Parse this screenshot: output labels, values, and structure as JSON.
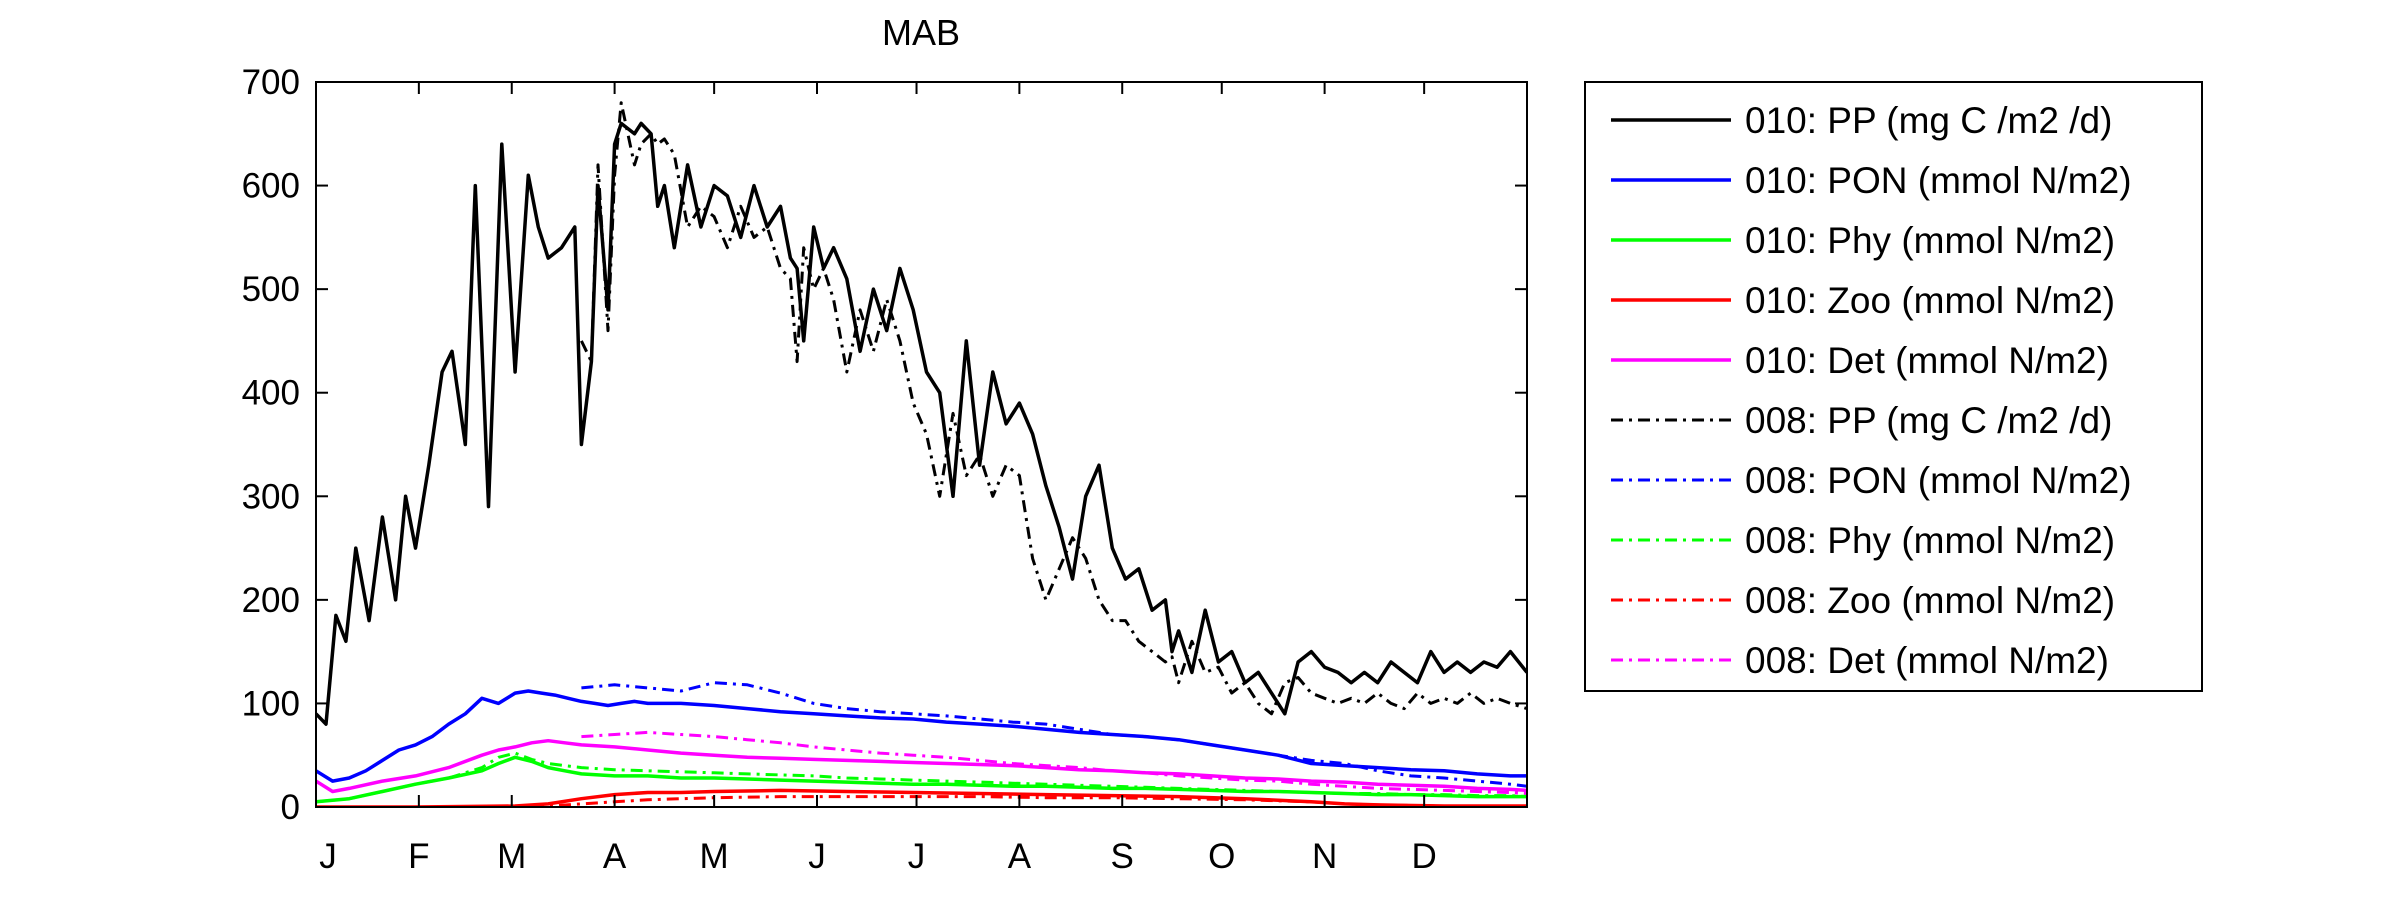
{
  "chart_data": {
    "type": "line",
    "title": "MAB",
    "xlabel": "",
    "ylabel": "",
    "x_range_days": [
      0,
      365
    ],
    "ylim": [
      0,
      700
    ],
    "y_ticks": [
      0,
      100,
      200,
      300,
      400,
      500,
      600,
      700
    ],
    "x_ticks": [
      "J",
      "F",
      "M",
      "A",
      "M",
      "J",
      "J",
      "A",
      "S",
      "O",
      "N",
      "D"
    ],
    "x_tick_days": [
      0,
      31,
      59,
      90,
      120,
      151,
      181,
      212,
      243,
      273,
      304,
      334
    ],
    "grid": false,
    "legend_position": "outside-right",
    "series": [
      {
        "name": "010: PP (mg C /m2 /d)",
        "color": "#000000",
        "style": "solid",
        "x": [
          0,
          3,
          6,
          9,
          12,
          16,
          20,
          24,
          27,
          30,
          34,
          38,
          41,
          45,
          48,
          52,
          56,
          60,
          64,
          67,
          70,
          74,
          78,
          80,
          83,
          85,
          88,
          90,
          92,
          96,
          98,
          101,
          103,
          105,
          108,
          112,
          116,
          120,
          124,
          128,
          132,
          136,
          140,
          143,
          145,
          147,
          150,
          153,
          156,
          160,
          164,
          168,
          172,
          176,
          180,
          184,
          188,
          192,
          196,
          200,
          204,
          208,
          212,
          216,
          220,
          224,
          228,
          232,
          236,
          240,
          244,
          248,
          252,
          256,
          258,
          260,
          264,
          268,
          272,
          276,
          280,
          284,
          288,
          292,
          296,
          300,
          304,
          308,
          312,
          316,
          320,
          324,
          328,
          332,
          336,
          340,
          344,
          348,
          352,
          356,
          360,
          365
        ],
        "y": [
          90,
          80,
          185,
          160,
          250,
          180,
          280,
          200,
          300,
          250,
          330,
          420,
          440,
          350,
          600,
          290,
          640,
          420,
          610,
          560,
          530,
          540,
          560,
          350,
          430,
          600,
          480,
          640,
          660,
          650,
          660,
          650,
          580,
          600,
          540,
          620,
          560,
          600,
          590,
          550,
          600,
          560,
          580,
          530,
          520,
          450,
          560,
          520,
          540,
          510,
          440,
          500,
          460,
          520,
          480,
          420,
          400,
          300,
          450,
          330,
          420,
          370,
          390,
          360,
          310,
          270,
          220,
          300,
          330,
          250,
          220,
          230,
          190,
          200,
          150,
          170,
          130,
          190,
          140,
          150,
          120,
          130,
          110,
          90,
          140,
          150,
          135,
          130,
          120,
          130,
          120,
          140,
          130,
          120,
          150,
          130,
          140,
          130,
          140,
          135,
          150,
          130
        ]
      },
      {
        "name": "010: PON (mmol N/m2)",
        "color": "#0000ff",
        "style": "solid",
        "x": [
          0,
          5,
          10,
          15,
          20,
          25,
          30,
          35,
          40,
          45,
          50,
          55,
          60,
          64,
          68,
          72,
          76,
          80,
          84,
          88,
          92,
          96,
          100,
          110,
          120,
          130,
          140,
          150,
          160,
          170,
          180,
          190,
          200,
          210,
          220,
          230,
          240,
          250,
          260,
          270,
          280,
          290,
          300,
          310,
          320,
          330,
          340,
          350,
          360,
          365
        ],
        "y": [
          35,
          25,
          28,
          35,
          45,
          55,
          60,
          68,
          80,
          90,
          105,
          100,
          110,
          112,
          110,
          108,
          105,
          102,
          100,
          98,
          100,
          102,
          100,
          100,
          98,
          95,
          92,
          90,
          88,
          86,
          85,
          82,
          80,
          78,
          75,
          72,
          70,
          68,
          65,
          60,
          55,
          50,
          42,
          40,
          38,
          36,
          35,
          32,
          30,
          30
        ]
      },
      {
        "name": "010: Phy (mmol N/m2)",
        "color": "#00ff00",
        "style": "solid",
        "x": [
          0,
          10,
          20,
          30,
          40,
          50,
          55,
          60,
          65,
          70,
          75,
          80,
          90,
          100,
          110,
          120,
          130,
          140,
          150,
          160,
          170,
          180,
          190,
          200,
          210,
          220,
          230,
          240,
          250,
          260,
          270,
          280,
          290,
          300,
          310,
          320,
          330,
          340,
          350,
          360,
          365
        ],
        "y": [
          5,
          8,
          15,
          22,
          28,
          35,
          42,
          48,
          44,
          38,
          35,
          32,
          30,
          30,
          28,
          28,
          27,
          26,
          25,
          24,
          23,
          22,
          22,
          21,
          20,
          20,
          19,
          18,
          18,
          17,
          16,
          15,
          15,
          14,
          13,
          12,
          12,
          11,
          10,
          10,
          10
        ]
      },
      {
        "name": "010: Zoo (mmol N/m2)",
        "color": "#ff0000",
        "style": "solid",
        "x": [
          0,
          30,
          60,
          70,
          80,
          90,
          100,
          110,
          120,
          140,
          160,
          180,
          200,
          220,
          240,
          260,
          280,
          300,
          310,
          320,
          340,
          365
        ],
        "y": [
          0,
          0,
          1,
          3,
          8,
          12,
          14,
          14,
          15,
          16,
          15,
          14,
          13,
          12,
          11,
          10,
          8,
          5,
          3,
          2,
          1,
          1
        ]
      },
      {
        "name": "010: Det (mmol N/m2)",
        "color": "#ff00ff",
        "style": "solid",
        "x": [
          0,
          5,
          10,
          20,
          30,
          40,
          50,
          55,
          60,
          65,
          70,
          75,
          80,
          90,
          100,
          110,
          120,
          130,
          140,
          150,
          160,
          170,
          180,
          190,
          200,
          210,
          220,
          230,
          240,
          250,
          260,
          270,
          280,
          290,
          300,
          310,
          320,
          330,
          340,
          350,
          360,
          365
        ],
        "y": [
          25,
          15,
          18,
          25,
          30,
          38,
          50,
          55,
          58,
          62,
          64,
          62,
          60,
          58,
          55,
          52,
          50,
          48,
          47,
          46,
          45,
          44,
          43,
          42,
          41,
          40,
          38,
          36,
          35,
          33,
          32,
          30,
          28,
          27,
          25,
          24,
          22,
          21,
          20,
          18,
          17,
          16
        ]
      },
      {
        "name": "008: PP (mg C /m2 /d)",
        "color": "#000000",
        "style": "dashdot",
        "x": [
          80,
          83,
          85,
          88,
          90,
          92,
          96,
          98,
          101,
          103,
          105,
          108,
          112,
          116,
          120,
          124,
          128,
          132,
          136,
          140,
          143,
          145,
          147,
          150,
          153,
          156,
          160,
          164,
          168,
          172,
          176,
          180,
          184,
          188,
          192,
          196,
          200,
          204,
          208,
          212,
          216,
          220,
          224,
          228,
          232,
          236,
          240,
          244,
          248,
          252,
          256,
          258,
          260,
          264,
          268,
          272,
          276,
          280,
          284,
          288,
          292,
          296,
          300,
          304,
          308,
          312,
          316,
          320,
          324,
          328,
          332,
          336,
          340,
          344,
          348,
          352,
          356,
          360,
          365
        ],
        "y": [
          450,
          430,
          620,
          460,
          610,
          680,
          620,
          640,
          650,
          640,
          645,
          630,
          560,
          580,
          570,
          540,
          580,
          550,
          560,
          520,
          510,
          430,
          540,
          500,
          520,
          490,
          420,
          480,
          440,
          490,
          450,
          390,
          360,
          300,
          380,
          320,
          340,
          300,
          330,
          320,
          240,
          200,
          230,
          260,
          240,
          200,
          180,
          180,
          160,
          150,
          140,
          145,
          120,
          160,
          130,
          135,
          110,
          120,
          100,
          90,
          120,
          125,
          110,
          105,
          100,
          105,
          100,
          110,
          100,
          95,
          110,
          100,
          105,
          100,
          110,
          100,
          105,
          100,
          95
        ]
      },
      {
        "name": "008: PON (mmol N/m2)",
        "color": "#0000ff",
        "style": "dashdot",
        "x": [
          80,
          90,
          100,
          110,
          120,
          130,
          140,
          150,
          160,
          170,
          180,
          190,
          200,
          210,
          220,
          230,
          240,
          250,
          260,
          270,
          280,
          290,
          300,
          310,
          320,
          330,
          340,
          350,
          360,
          365
        ],
        "y": [
          115,
          118,
          115,
          112,
          120,
          118,
          110,
          100,
          95,
          92,
          90,
          88,
          85,
          82,
          80,
          75,
          70,
          68,
          65,
          60,
          55,
          50,
          45,
          42,
          35,
          30,
          28,
          25,
          22,
          20
        ]
      },
      {
        "name": "008: Phy (mmol N/m2)",
        "color": "#00ff00",
        "style": "dashdot",
        "x": [
          0,
          10,
          20,
          30,
          40,
          50,
          55,
          60,
          65,
          70,
          75,
          80,
          90,
          100,
          110,
          120,
          130,
          140,
          150,
          160,
          170,
          180,
          190,
          200,
          210,
          220,
          230,
          240,
          250,
          260,
          270,
          280,
          290,
          300,
          310,
          320,
          330,
          340,
          350,
          360,
          365
        ],
        "y": [
          5,
          8,
          15,
          22,
          28,
          38,
          48,
          52,
          46,
          42,
          40,
          38,
          36,
          35,
          34,
          33,
          32,
          31,
          30,
          28,
          27,
          26,
          25,
          24,
          23,
          22,
          21,
          20,
          19,
          18,
          17,
          16,
          15,
          14,
          13,
          13,
          12,
          12,
          11,
          11,
          10
        ]
      },
      {
        "name": "008: Zoo (mmol N/m2)",
        "color": "#ff0000",
        "style": "dashdot",
        "x": [
          0,
          30,
          60,
          70,
          80,
          90,
          100,
          110,
          120,
          140,
          160,
          180,
          200,
          220,
          240,
          260,
          280,
          300,
          310,
          320,
          340,
          365
        ],
        "y": [
          0,
          0,
          0,
          1,
          3,
          5,
          7,
          8,
          9,
          10,
          10,
          10,
          10,
          9,
          9,
          8,
          7,
          5,
          3,
          2,
          1,
          1
        ]
      },
      {
        "name": "008: Det (mmol N/m2)",
        "color": "#ff00ff",
        "style": "dashdot",
        "x": [
          80,
          90,
          100,
          110,
          120,
          130,
          140,
          150,
          160,
          170,
          180,
          190,
          200,
          210,
          220,
          230,
          240,
          250,
          260,
          270,
          280,
          290,
          300,
          310,
          320,
          330,
          340,
          350,
          360,
          365
        ],
        "y": [
          68,
          70,
          72,
          70,
          68,
          65,
          62,
          58,
          55,
          52,
          50,
          48,
          45,
          42,
          40,
          38,
          35,
          33,
          30,
          28,
          26,
          25,
          22,
          20,
          18,
          17,
          16,
          15,
          14,
          13
        ]
      }
    ]
  }
}
